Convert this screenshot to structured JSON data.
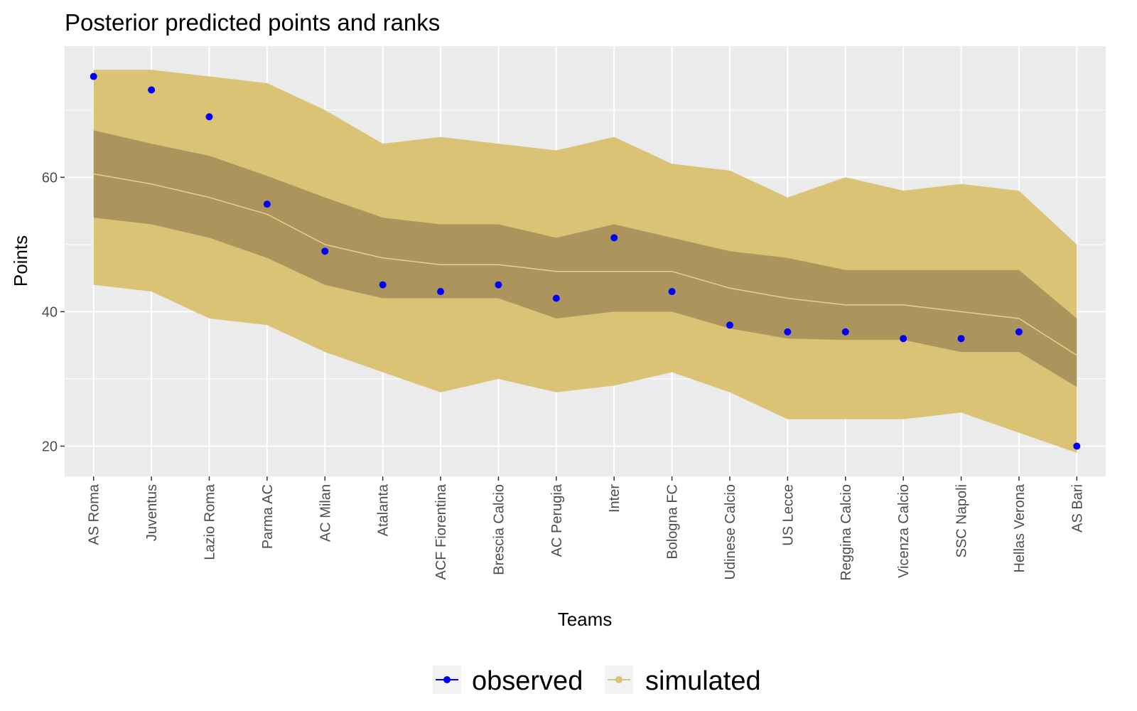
{
  "chart_data": {
    "type": "area",
    "title": "Posterior predicted points and ranks",
    "xlabel": "Teams",
    "ylabel": "Points",
    "ylim": [
      15.5,
      79.5
    ],
    "yticks": [
      20,
      40,
      60
    ],
    "grid": true,
    "legend_position": "bottom",
    "categories": [
      "AS Roma",
      "Juventus",
      "Lazio Roma",
      "Parma AC",
      "AC Milan",
      "Atalanta",
      "ACF Fiorentina",
      "Brescia Calcio",
      "AC Perugia",
      "Inter",
      "Bologna FC",
      "Udinese Calcio",
      "US Lecce",
      "Reggina Calcio",
      "Vicenza Calcio",
      "SSC Napoli",
      "Hellas Verona",
      "AS Bari"
    ],
    "series": [
      {
        "name": "observed",
        "kind": "points",
        "color": "#0000ff",
        "values": [
          75,
          73,
          69,
          56,
          49,
          44,
          43,
          44,
          42,
          51,
          43,
          38,
          37,
          37,
          36,
          36,
          37,
          20
        ]
      },
      {
        "name": "simulated",
        "kind": "bands",
        "color": "#dbc376",
        "outer_lower": [
          44,
          43,
          39,
          38,
          34,
          31,
          28,
          30,
          28,
          29,
          31,
          28,
          24,
          24,
          24,
          25,
          22,
          19
        ],
        "outer_upper": [
          76,
          76,
          75,
          74,
          70,
          65,
          66,
          65,
          64,
          66,
          62,
          61,
          57,
          60,
          58,
          59,
          58,
          50
        ],
        "inner_lower": [
          54,
          53,
          51,
          48,
          44,
          42,
          42,
          42,
          39,
          40,
          40,
          37.5,
          36,
          35.8,
          35.8,
          34,
          34,
          28.8
        ],
        "inner_upper": [
          67,
          65,
          63.2,
          60.2,
          57,
          54,
          53,
          53,
          51,
          53,
          51,
          49,
          48,
          46.2,
          46.2,
          46.2,
          46.2,
          39
        ],
        "median": [
          60.5,
          59,
          57,
          54.5,
          50,
          48,
          47,
          47,
          46,
          46,
          46,
          43.5,
          42,
          41,
          41,
          40,
          39,
          33.5
        ]
      }
    ],
    "colors": {
      "panel_background": "#ebebeb",
      "grid": "#ffffff",
      "outer_band": "#dbc376",
      "inner_band": "#ab955c",
      "median_line": "#e8d08a",
      "observed_point": "#0000ff"
    }
  }
}
